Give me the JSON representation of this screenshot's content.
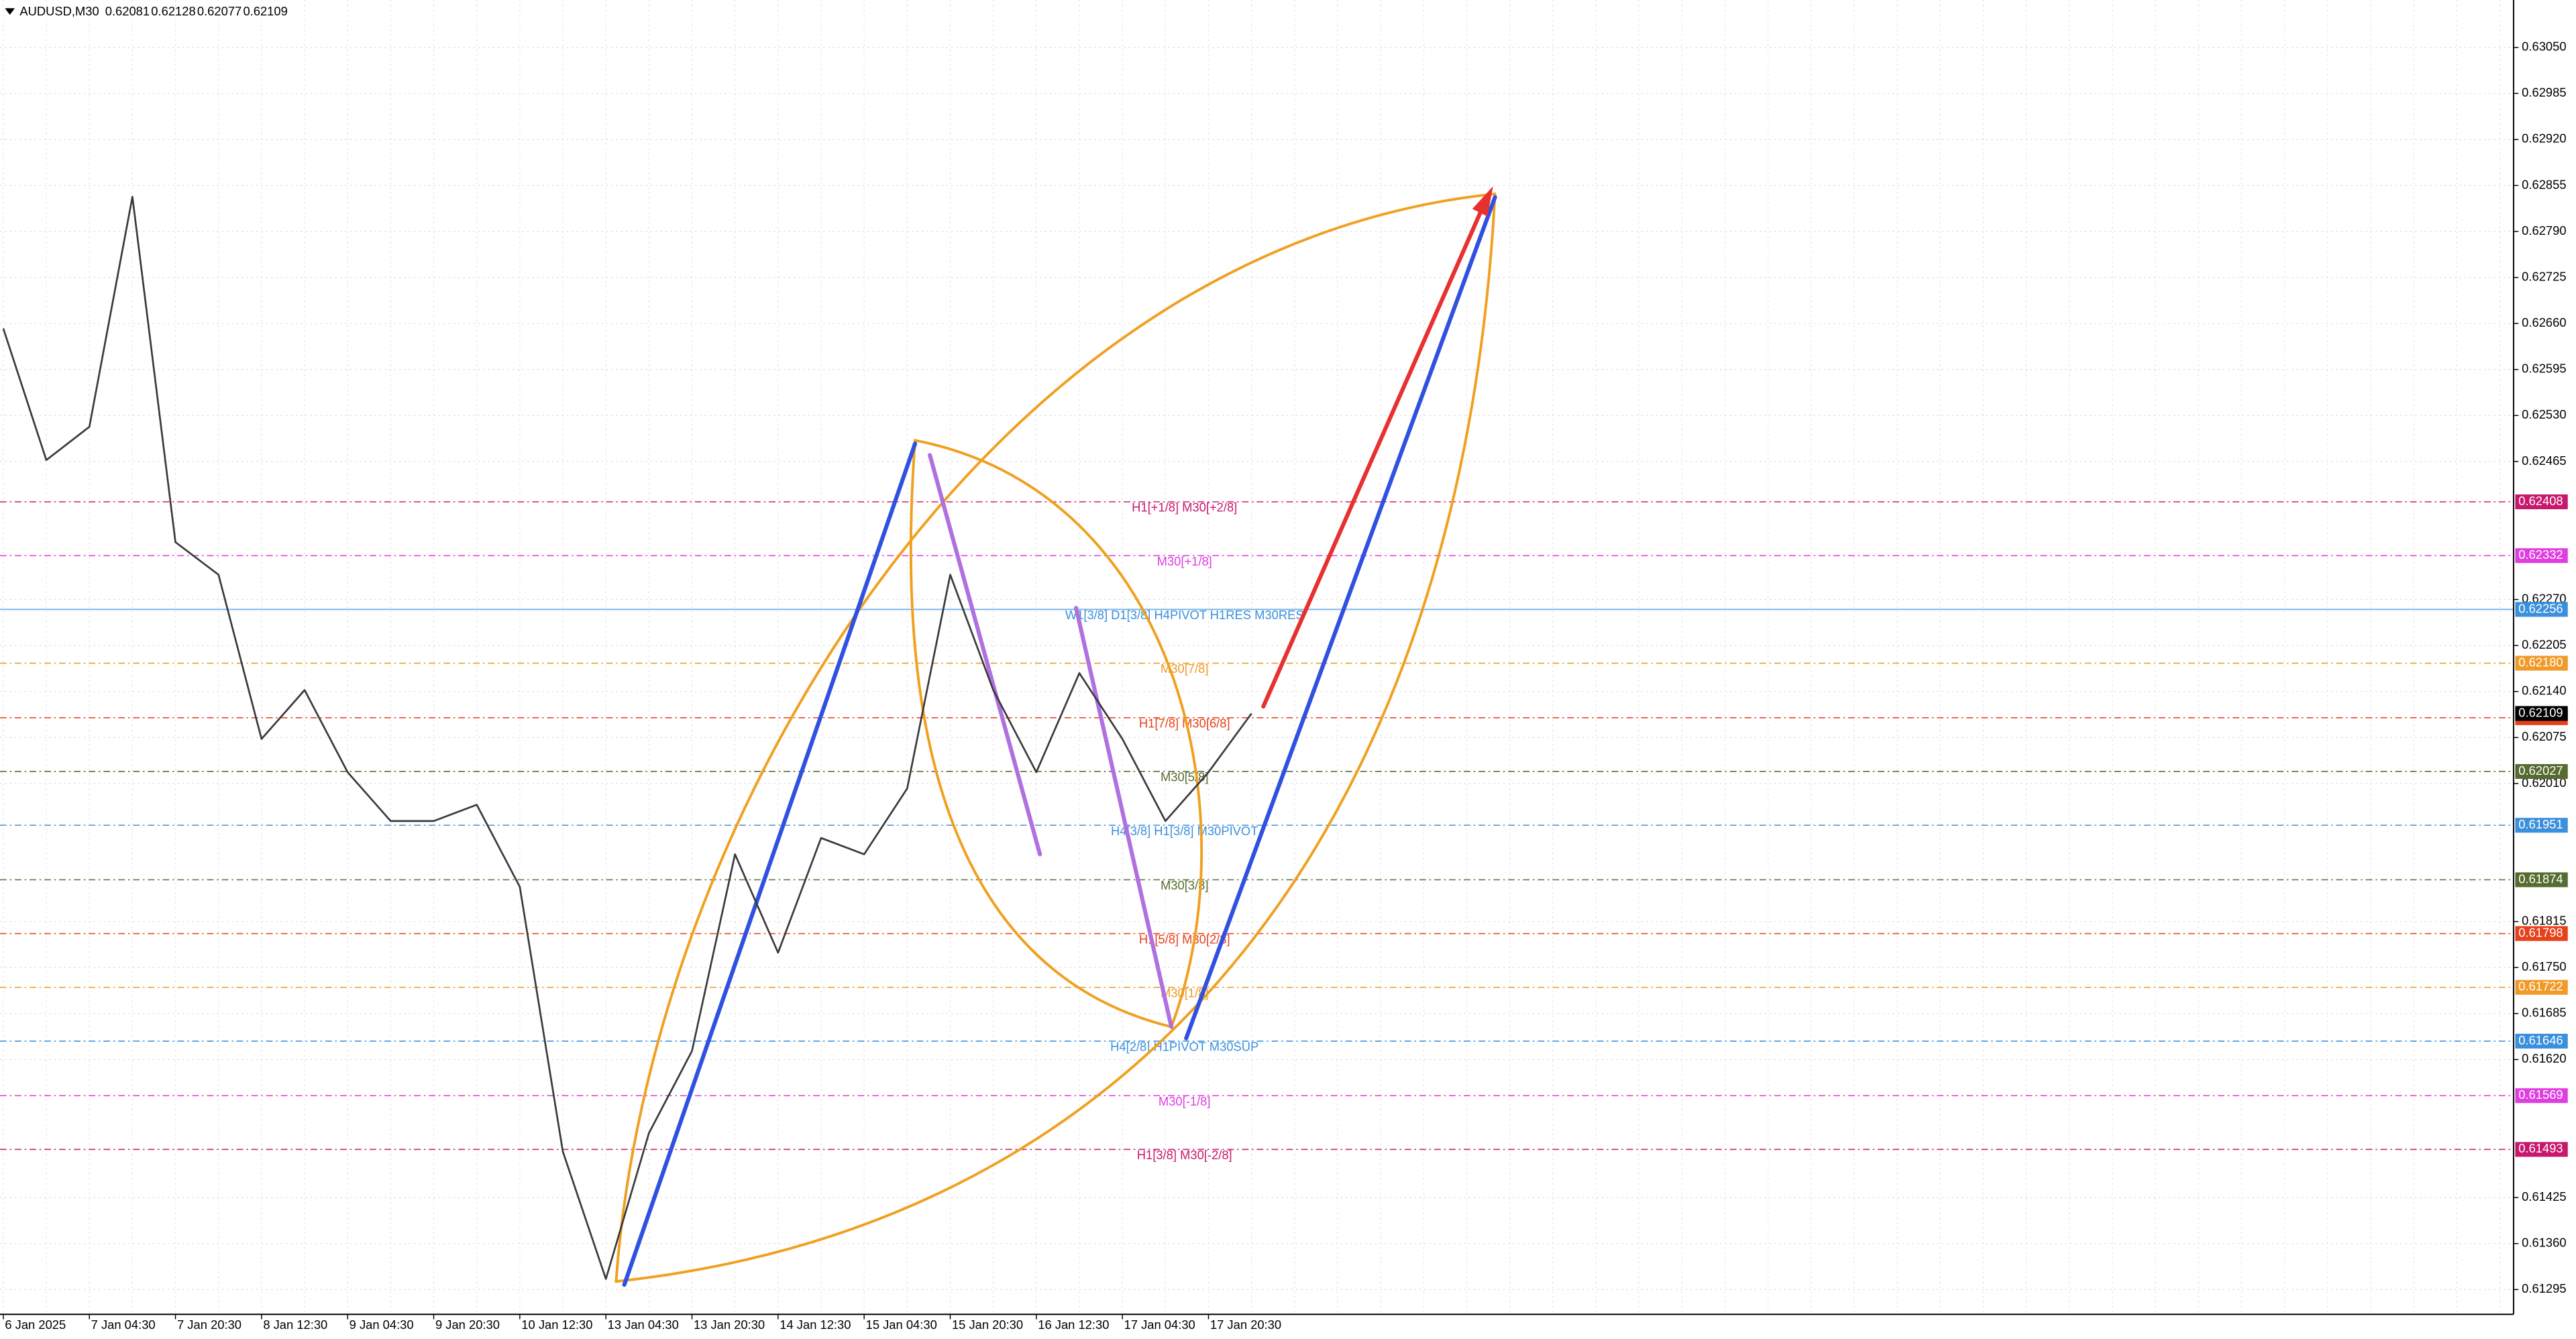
{
  "chart_data": {
    "type": "line",
    "symbol": "AUDUSD,M30",
    "ohlc": [
      0.62081,
      0.62128,
      0.62077,
      0.62109
    ],
    "color": "#3a3a3a",
    "categories": [
      "6 Jan 2025",
      null,
      "7 Jan 04:30",
      null,
      "7 Jan 20:30",
      null,
      "8 Jan 12:30",
      null,
      "9 Jan 04:30",
      null,
      "9 Jan 20:30",
      null,
      "10 Jan 12:30",
      null,
      "13 Jan 04:30",
      null,
      "13 Jan 20:30",
      null,
      "14 Jan 12:30",
      null,
      "15 Jan 04:30",
      null,
      "15 Jan 20:30",
      null,
      "16 Jan 12:30",
      null,
      "17 Jan 04:30",
      null,
      "17 Jan 20:30",
      null,
      null,
      null,
      null,
      null,
      null,
      null,
      null,
      null,
      null,
      null,
      null,
      null,
      null,
      null,
      null,
      null,
      null,
      null,
      null,
      null,
      null,
      null,
      null,
      null,
      null,
      null,
      null,
      null,
      null
    ],
    "values": [
      0.62653,
      0.62467,
      0.62514,
      0.62839,
      0.62351,
      0.62305,
      0.62073,
      0.62142,
      0.62026,
      0.61957,
      0.61957,
      0.6198,
      0.61864,
      0.6149,
      0.6131,
      0.61516,
      0.61632,
      0.6191,
      0.61771,
      0.61933,
      0.6191,
      0.62003,
      0.62305,
      0.62142,
      0.62026,
      0.62166,
      0.62073,
      0.61957,
      0.62026,
      0.62109,
      null,
      null,
      null,
      null,
      null,
      null,
      null,
      null,
      null,
      null,
      null,
      null,
      null,
      null,
      null,
      null,
      null,
      null,
      null,
      null,
      null,
      null,
      null,
      null,
      null,
      null,
      null,
      null,
      null
    ],
    "ylim": [
      0.6126,
      0.63117
    ],
    "yticks": [
      {
        "value": 0.6305,
        "label": "0.63050"
      },
      {
        "value": 0.62985,
        "label": "0.62985"
      },
      {
        "value": 0.6292,
        "label": "0.62920"
      },
      {
        "value": 0.62855,
        "label": "0.62855"
      },
      {
        "value": 0.6279,
        "label": "0.62790"
      },
      {
        "value": 0.62725,
        "label": "0.62725"
      },
      {
        "value": 0.6266,
        "label": "0.62660"
      },
      {
        "value": 0.62595,
        "label": "0.62595"
      },
      {
        "value": 0.6253,
        "label": "0.62530"
      },
      {
        "value": 0.62465,
        "label": "0.62465"
      },
      {
        "value": 0.6227,
        "label": "0.62270"
      },
      {
        "value": 0.62205,
        "label": "0.62205"
      },
      {
        "value": 0.6214,
        "label": "0.62140"
      },
      {
        "value": 0.62075,
        "label": "0.62075"
      },
      {
        "value": 0.6201,
        "label": "0.62010"
      },
      {
        "value": 0.61815,
        "label": "0.61815"
      },
      {
        "value": 0.6175,
        "label": "0.61750"
      },
      {
        "value": 0.61685,
        "label": "0.61685"
      },
      {
        "value": 0.6162,
        "label": "0.61620"
      },
      {
        "value": 0.61425,
        "label": "0.61425"
      },
      {
        "value": 0.6136,
        "label": "0.61360"
      },
      {
        "value": 0.61295,
        "label": "0.61295"
      }
    ],
    "grid": true,
    "levels": [
      {
        "name": "H1[+1/8] M30[+2/8]",
        "value": 0.62408,
        "color": "#c8186e",
        "solid": false
      },
      {
        "name": "M30[+1/8]",
        "value": 0.62332,
        "color": "#e03ee0",
        "solid": false
      },
      {
        "name": "W1[3/8] D1[3/8] H4PIVOT H1RES M30RES",
        "value": 0.62256,
        "color": "#3a90dc",
        "solid": true
      },
      {
        "name": "M30[7/8]",
        "value": 0.6218,
        "value_label": "0.62180",
        "color": "#f09a28",
        "solid": false
      },
      {
        "name": "H1[7/8] M30[6/8]",
        "value": 0.62103,
        "color": "#e8401a",
        "solid": false
      },
      {
        "name": "M30[5/8]",
        "value": 0.62027,
        "color": "#556b2f",
        "solid": false
      },
      {
        "name": "H4[3/8] H1[3/8] M30PIVOT",
        "value": 0.61951,
        "color": "#3a90dc",
        "solid": false
      },
      {
        "name": "M30[3/8]",
        "value": 0.61874,
        "color": "#556b2f",
        "solid": false
      },
      {
        "name": "H1[5/8] M30[2/8]",
        "value": 0.61798,
        "color": "#e8401a",
        "solid": false
      },
      {
        "name": "M30[1/8]",
        "value": 0.61722,
        "color": "#f09a28",
        "solid": false
      },
      {
        "name": "H4[2/8] H1PIVOT M30SUP",
        "value": 0.61646,
        "color": "#3a90dc",
        "solid": false
      },
      {
        "name": "M30[-1/8]",
        "value": 0.61569,
        "color": "#e03ee0",
        "solid": false
      },
      {
        "name": "H1[3/8] M30[-2/8]",
        "value": 0.61493,
        "color": "#c8186e",
        "solid": false
      }
    ]
  }
}
